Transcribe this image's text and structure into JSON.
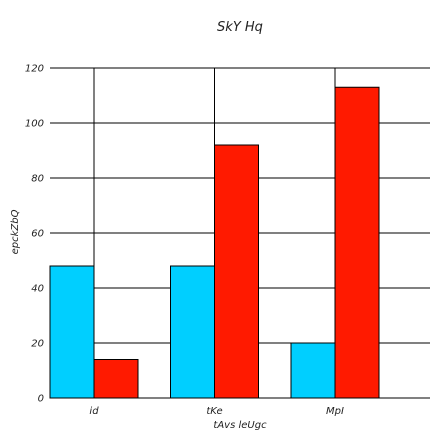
{
  "chart_data": {
    "type": "bar",
    "title": "SkY Hq",
    "xlabel": "tAvs leUgc",
    "ylabel": "epckZbQ",
    "categories": [
      "id",
      "tKe",
      "MpI"
    ],
    "series": [
      {
        "values": [
          48,
          48,
          20
        ],
        "color": "#00cfff"
      },
      {
        "values": [
          14,
          92,
          113
        ],
        "color": "#ff1a00"
      }
    ],
    "ylim": [
      0,
      120
    ],
    "yticks": [
      0,
      20,
      40,
      60,
      80,
      100,
      120
    ],
    "grid": true,
    "legend": "none"
  }
}
